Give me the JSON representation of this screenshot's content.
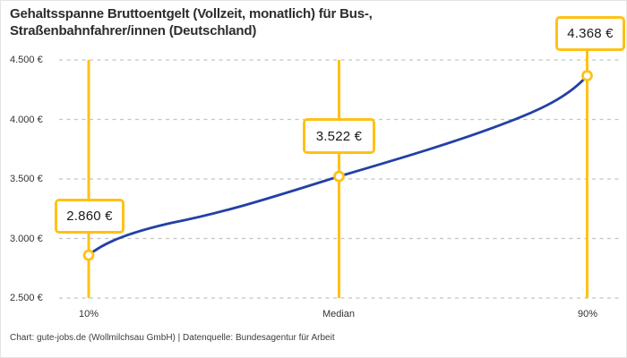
{
  "title": {
    "line1": "Gehaltsspanne Bruttoentgelt (Vollzeit, monatlich) für Bus-,",
    "line2": "Straßenbahnfahrer/innen (Deutschland)"
  },
  "footer": "Chart: gute-jobs.de (Wollmilchsau GmbH) | Datenquelle: Bundesagentur für Arbeit",
  "colors": {
    "accent_yellow": "#FFC117",
    "line_blue": "#2340A5",
    "grid_gray": "#C4C4C4",
    "text_dark": "#333333"
  },
  "chart_data": {
    "type": "line",
    "title": "Gehaltsspanne Bruttoentgelt (Vollzeit, monatlich) für Bus-, Straßenbahnfahrer/innen (Deutschland)",
    "categories": [
      "10%",
      "Median",
      "90%"
    ],
    "values": [
      2860,
      3522,
      4368
    ],
    "value_labels": [
      "2.860 €",
      "3.522 €",
      "4.368 €"
    ],
    "ylim": [
      2500,
      4500
    ],
    "ytick_values": [
      4500,
      4000,
      3500,
      3000,
      2500
    ],
    "ytick_labels": [
      "4.500 €",
      "4.000 €",
      "3.500 €",
      "3.000 €",
      "2.500 €"
    ],
    "xlabel": "",
    "ylabel": "",
    "grid": "horizontal-dashed",
    "legend": "none",
    "marker": "open-circle",
    "annotations": "value callout box anchored on each percentile line"
  }
}
